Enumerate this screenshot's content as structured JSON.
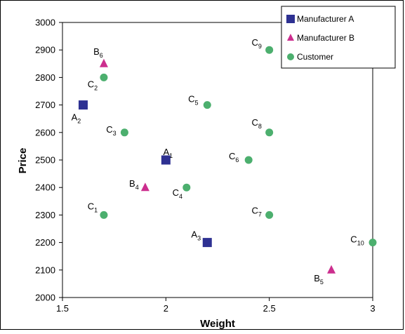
{
  "chart_data": {
    "type": "scatter",
    "xlabel": "Weight",
    "ylabel": "Price",
    "xlim": [
      1.5,
      3
    ],
    "ylim": [
      2000,
      3000
    ],
    "x_ticks": [
      "1.5",
      "2",
      "2.5",
      "3"
    ],
    "y_ticks": [
      "2000",
      "2100",
      "2200",
      "2300",
      "2400",
      "2500",
      "2600",
      "2700",
      "2800",
      "2900",
      "3000"
    ],
    "grid": false,
    "legend_position": "top-right",
    "series": [
      {
        "name": "Manufacturer A",
        "marker": "square",
        "color": "#2E3192",
        "points": [
          {
            "label": "A",
            "sub": "1",
            "x": 2.0,
            "y": 2500
          },
          {
            "label": "A",
            "sub": "2",
            "x": 1.6,
            "y": 2700
          },
          {
            "label": "A",
            "sub": "3",
            "x": 2.2,
            "y": 2200
          }
        ]
      },
      {
        "name": "Manufacturer B",
        "marker": "triangle",
        "color": "#CC2E8E",
        "points": [
          {
            "label": "B",
            "sub": "4",
            "x": 1.9,
            "y": 2400
          },
          {
            "label": "B",
            "sub": "5",
            "x": 2.8,
            "y": 2100
          },
          {
            "label": "B",
            "sub": "6",
            "x": 1.7,
            "y": 2850
          }
        ]
      },
      {
        "name": "Customer",
        "marker": "circle",
        "color": "#4CAF6E",
        "points": [
          {
            "label": "C",
            "sub": "1",
            "x": 1.7,
            "y": 2300
          },
          {
            "label": "C",
            "sub": "2",
            "x": 1.7,
            "y": 2800
          },
          {
            "label": "C",
            "sub": "3",
            "x": 1.8,
            "y": 2600
          },
          {
            "label": "C",
            "sub": "4",
            "x": 2.1,
            "y": 2400
          },
          {
            "label": "C",
            "sub": "5",
            "x": 2.2,
            "y": 2700
          },
          {
            "label": "C",
            "sub": "6",
            "x": 2.4,
            "y": 2500
          },
          {
            "label": "C",
            "sub": "7",
            "x": 2.5,
            "y": 2300
          },
          {
            "label": "C",
            "sub": "8",
            "x": 2.5,
            "y": 2600
          },
          {
            "label": "C",
            "sub": "9",
            "x": 2.5,
            "y": 2900
          },
          {
            "label": "C",
            "sub": "10",
            "x": 3.0,
            "y": 2200
          }
        ]
      }
    ]
  }
}
